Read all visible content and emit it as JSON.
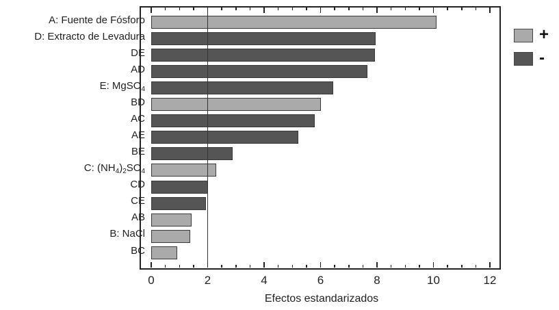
{
  "chart_data": {
    "type": "bar",
    "orientation": "horizontal",
    "title": "",
    "xlabel": "Efectos estandarizados",
    "ylabel": "",
    "xlim": [
      0,
      12
    ],
    "xticks": [
      0,
      2,
      4,
      6,
      8,
      10,
      12
    ],
    "reference_line": 2.0,
    "categories": [
      "A: Fuente de Fósforo",
      "D: Extracto de Levadura",
      "DE",
      "AD",
      "E: MgSO4",
      "BD",
      "AC",
      "AE",
      "BE",
      "C: (NH4)2SO4",
      "CD",
      "CE",
      "AB",
      "B: NaCl",
      "BC"
    ],
    "values": [
      10.1,
      7.95,
      7.93,
      7.65,
      6.45,
      6.0,
      5.8,
      5.2,
      2.88,
      2.3,
      2.0,
      1.93,
      1.43,
      1.38,
      0.92
    ],
    "signs": [
      "+",
      "-",
      "-",
      "-",
      "-",
      "+",
      "-",
      "-",
      "-",
      "+",
      "-",
      "-",
      "+",
      "+",
      "+"
    ],
    "legend": [
      {
        "label": "+",
        "color": "#aaaaaa"
      },
      {
        "label": "-",
        "color": "#555555"
      }
    ],
    "legend_position": "right-top",
    "grid": false
  },
  "labels": {
    "a": {
      "pre": "A: Fuente de Fósforo"
    },
    "d": {
      "pre": "D: Extracto de Levadura"
    },
    "de": {
      "pre": "DE"
    },
    "ad": {
      "pre": "AD"
    },
    "e": {
      "pre": "E: MgSO",
      "sub1": "4"
    },
    "bd": {
      "pre": "BD"
    },
    "ac": {
      "pre": "AC"
    },
    "ae": {
      "pre": "AE"
    },
    "be": {
      "pre": "BE"
    },
    "c": {
      "pre": "C: (NH",
      "sub1": "4",
      "mid": ")",
      "sub2": "2",
      "post": "SO",
      "sub3": "4"
    },
    "cd": {
      "pre": "CD"
    },
    "ce": {
      "pre": "CE"
    },
    "ab": {
      "pre": "AB"
    },
    "b": {
      "pre": "B: NaCl"
    },
    "bc": {
      "pre": "BC"
    }
  },
  "axis": {
    "ticks": [
      "0",
      "2",
      "4",
      "6",
      "8",
      "10",
      "12"
    ],
    "title": "Efectos estandarizados"
  },
  "legend": {
    "plus": "+",
    "minus": "-"
  }
}
